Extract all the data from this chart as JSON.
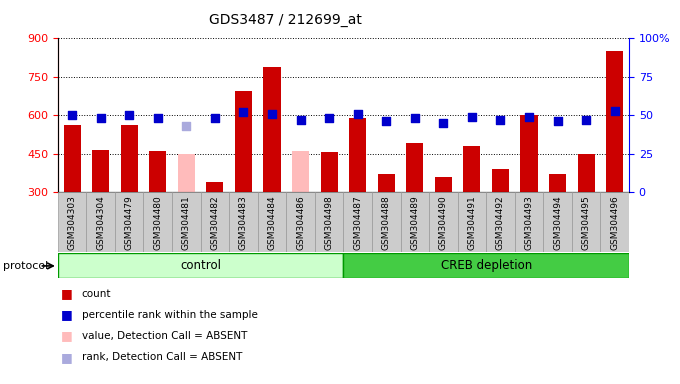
{
  "title": "GDS3487 / 212699_at",
  "categories": [
    "GSM304303",
    "GSM304304",
    "GSM304479",
    "GSM304480",
    "GSM304481",
    "GSM304482",
    "GSM304483",
    "GSM304484",
    "GSM304486",
    "GSM304498",
    "GSM304487",
    "GSM304488",
    "GSM304489",
    "GSM304490",
    "GSM304491",
    "GSM304492",
    "GSM304493",
    "GSM304494",
    "GSM304495",
    "GSM304496"
  ],
  "count_values": [
    560,
    465,
    560,
    460,
    448,
    340,
    695,
    790,
    460,
    455,
    590,
    370,
    490,
    360,
    480,
    390,
    600,
    370,
    450,
    850
  ],
  "absent_count": [
    false,
    false,
    false,
    false,
    true,
    false,
    false,
    false,
    true,
    false,
    false,
    false,
    false,
    false,
    false,
    false,
    false,
    false,
    false,
    false
  ],
  "percentile_values": [
    50,
    48,
    50,
    48,
    43,
    48,
    52,
    51,
    47,
    48,
    51,
    46,
    48,
    45,
    49,
    47,
    49,
    46,
    47,
    53
  ],
  "absent_percentile": [
    false,
    false,
    false,
    false,
    true,
    false,
    false,
    false,
    false,
    false,
    false,
    false,
    false,
    false,
    false,
    false,
    false,
    false,
    false,
    false
  ],
  "control_count": 10,
  "total_count": 20,
  "ylim_left": [
    300,
    900
  ],
  "ylim_right": [
    0,
    100
  ],
  "yticks_left": [
    300,
    450,
    600,
    750,
    900
  ],
  "yticks_right": [
    0,
    25,
    50,
    75,
    100
  ],
  "bar_color_present": "#cc0000",
  "bar_color_absent": "#ffbbbb",
  "dot_color_present": "#0000cc",
  "dot_color_absent": "#aaaadd",
  "protocol_label": "protocol",
  "group1_label": "control",
  "group2_label": "CREB depletion",
  "group1_color": "#ccffcc",
  "group2_color": "#44cc44",
  "bar_width": 0.6,
  "dot_size": 40,
  "xticklabel_bg": "#cccccc",
  "plot_bg": "#ffffff"
}
